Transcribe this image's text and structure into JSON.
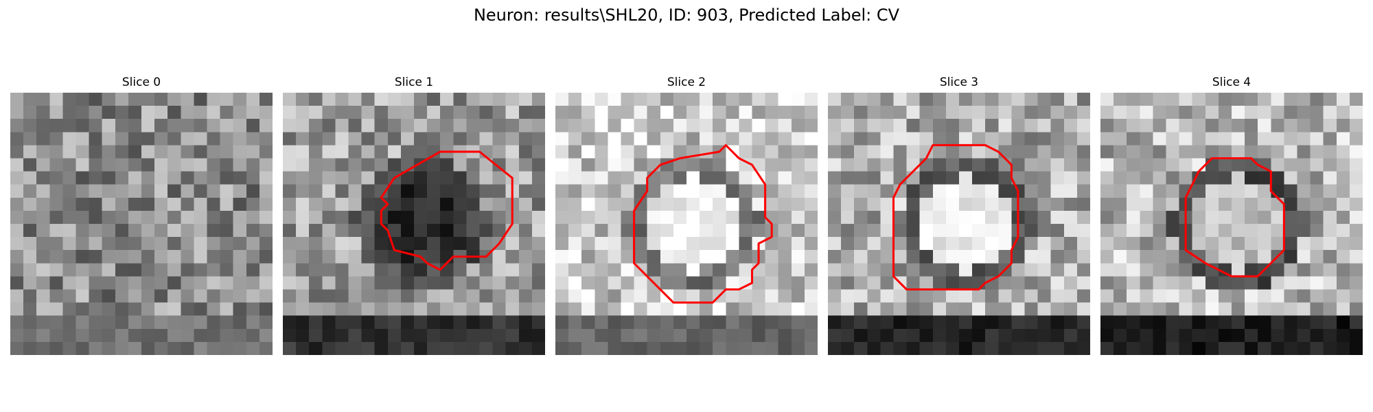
{
  "figure": {
    "title": "Neuron: results\\SHL20, ID: 903, Predicted Label: CV"
  },
  "colors": {
    "contour": "#ff0000",
    "background": "#ffffff"
  },
  "panels": [
    {
      "label": "Slice 0",
      "has_contour": false,
      "brightness": 0.55,
      "center_tone": 0.5,
      "ring_tone": 0.5,
      "bottom_band": 0.45,
      "contour": []
    },
    {
      "label": "Slice 1",
      "has_contour": true,
      "brightness": 0.62,
      "center_tone": 0.18,
      "ring_tone": 0.3,
      "bottom_band": 0.2,
      "contour": [
        [
          12,
          4.5
        ],
        [
          15,
          4.5
        ],
        [
          17.5,
          6.5
        ],
        [
          17.5,
          10
        ],
        [
          16.5,
          11.5
        ],
        [
          15.5,
          12.5
        ],
        [
          13,
          12.5
        ],
        [
          12,
          13.5
        ],
        [
          11,
          13
        ],
        [
          10.5,
          12.5
        ],
        [
          8.5,
          12
        ],
        [
          8,
          10.5
        ],
        [
          7.5,
          10
        ],
        [
          7.5,
          9
        ],
        [
          8,
          8.5
        ],
        [
          7.5,
          8
        ],
        [
          8.5,
          6.5
        ]
      ]
    },
    {
      "label": "Slice 2",
      "has_contour": true,
      "brightness": 0.8,
      "center_tone": 0.95,
      "ring_tone": 0.45,
      "bottom_band": 0.4,
      "contour": [
        [
          9.5,
          5
        ],
        [
          12.5,
          4.5
        ],
        [
          13,
          4
        ],
        [
          13.5,
          4.5
        ],
        [
          14,
          5
        ],
        [
          15,
          5.5
        ],
        [
          16,
          7
        ],
        [
          16,
          9.5
        ],
        [
          16.5,
          10
        ],
        [
          16.5,
          11
        ],
        [
          15.5,
          11.5
        ],
        [
          15.5,
          13
        ],
        [
          15,
          13.5
        ],
        [
          15,
          14.5
        ],
        [
          14,
          15
        ],
        [
          13,
          15
        ],
        [
          12,
          16
        ],
        [
          9,
          16
        ],
        [
          8,
          15
        ],
        [
          6,
          13
        ],
        [
          6,
          9
        ],
        [
          7,
          7.5
        ],
        [
          7,
          6.5
        ],
        [
          8,
          5.5
        ]
      ]
    },
    {
      "label": "Slice 3",
      "has_contour": true,
      "brightness": 0.68,
      "center_tone": 0.95,
      "ring_tone": 0.35,
      "bottom_band": 0.15,
      "contour": [
        [
          8,
          4
        ],
        [
          12,
          4
        ],
        [
          13,
          4.5
        ],
        [
          14,
          5.5
        ],
        [
          14,
          6.5
        ],
        [
          14.5,
          7.5
        ],
        [
          14.5,
          11
        ],
        [
          14,
          12
        ],
        [
          14,
          13
        ],
        [
          13,
          14
        ],
        [
          12,
          14.5
        ],
        [
          11.5,
          15
        ],
        [
          6,
          15
        ],
        [
          5,
          14
        ],
        [
          5,
          13
        ],
        [
          5,
          8
        ],
        [
          5.5,
          7
        ],
        [
          6.5,
          6
        ],
        [
          7.5,
          5
        ]
      ]
    },
    {
      "label": "Slice 4",
      "has_contour": true,
      "brightness": 0.72,
      "center_tone": 0.75,
      "ring_tone": 0.3,
      "bottom_band": 0.12,
      "contour": [
        [
          8.5,
          5
        ],
        [
          11.5,
          5
        ],
        [
          12,
          5.5
        ],
        [
          13,
          6
        ],
        [
          13,
          7.5
        ],
        [
          13.5,
          8
        ],
        [
          14,
          8.5
        ],
        [
          14,
          12
        ],
        [
          13,
          13
        ],
        [
          12.5,
          13.5
        ],
        [
          12,
          14
        ],
        [
          11,
          14
        ],
        [
          10,
          14
        ],
        [
          9,
          13.5
        ],
        [
          8,
          13
        ],
        [
          6.5,
          12
        ],
        [
          6.5,
          11
        ],
        [
          6.5,
          8
        ],
        [
          7.5,
          6
        ]
      ]
    }
  ]
}
